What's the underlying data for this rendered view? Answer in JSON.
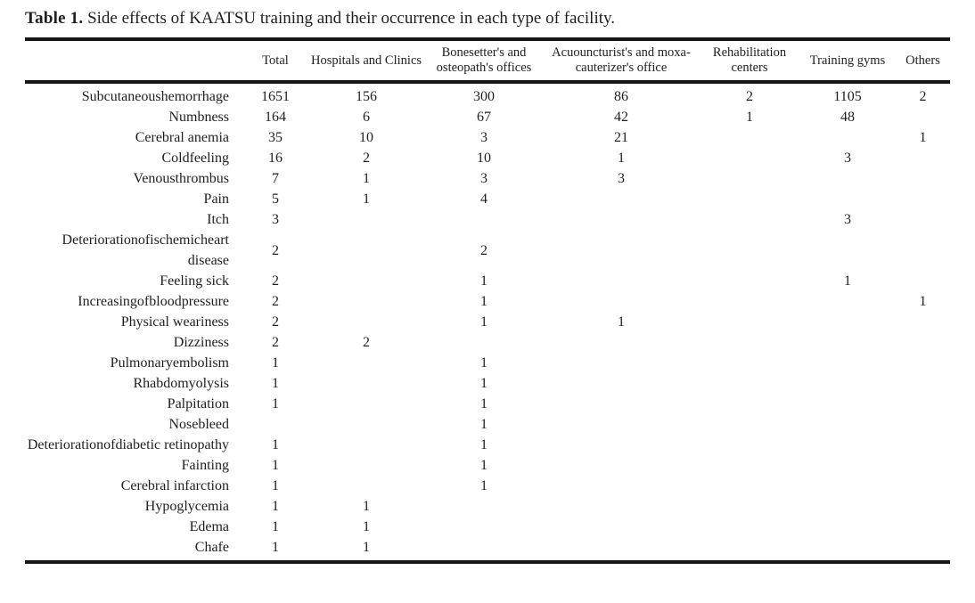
{
  "title": {
    "label": "Table 1.",
    "text": " Side effects of KAATSU training and their occurrence in each type of facility."
  },
  "table": {
    "row_label_header": "",
    "columns": [
      "Total",
      "Hospitals and Clinics",
      "Bonesetter's and osteopath's offices",
      "Acuouncturist's and moxa-cauterizer's office",
      "Rehabilitation centers",
      "Training gyms",
      "Others"
    ],
    "rows": [
      {
        "label": "Subcutaneoushemorrhage",
        "values": [
          "1651",
          "156",
          "300",
          "86",
          "2",
          "1105",
          "2"
        ]
      },
      {
        "label": "Numbness",
        "values": [
          "164",
          "6",
          "67",
          "42",
          "1",
          "48",
          ""
        ]
      },
      {
        "label": "Cerebral anemia",
        "values": [
          "35",
          "10",
          "3",
          "21",
          "",
          "",
          "1"
        ]
      },
      {
        "label": "Coldfeeling",
        "values": [
          "16",
          "2",
          "10",
          "1",
          "",
          "3",
          ""
        ]
      },
      {
        "label": "Venousthrombus",
        "values": [
          "7",
          "1",
          "3",
          "3",
          "",
          "",
          ""
        ]
      },
      {
        "label": "Pain",
        "values": [
          "5",
          "1",
          "4",
          "",
          "",
          "",
          ""
        ]
      },
      {
        "label": "Itch",
        "values": [
          "3",
          "",
          "",
          "",
          "",
          "3",
          ""
        ]
      },
      {
        "label": "Deteriorationofischemicheart disease",
        "values": [
          "2",
          "",
          "2",
          "",
          "",
          "",
          ""
        ]
      },
      {
        "label": "Feeling sick",
        "values": [
          "2",
          "",
          "1",
          "",
          "",
          "1",
          ""
        ]
      },
      {
        "label": "Increasingofbloodpressure",
        "values": [
          "2",
          "",
          "1",
          "",
          "",
          "",
          "1"
        ]
      },
      {
        "label": "Physical weariness",
        "values": [
          "2",
          "",
          "1",
          "1",
          "",
          "",
          ""
        ]
      },
      {
        "label": "Dizziness",
        "values": [
          "2",
          "2",
          "",
          "",
          "",
          "",
          ""
        ]
      },
      {
        "label": "Pulmonaryembolism",
        "values": [
          "1",
          "",
          "1",
          "",
          "",
          "",
          ""
        ]
      },
      {
        "label": "Rhabdomyolysis",
        "values": [
          "1",
          "",
          "1",
          "",
          "",
          "",
          ""
        ]
      },
      {
        "label": "Palpitation",
        "values": [
          "1",
          "",
          "1",
          "",
          "",
          "",
          ""
        ]
      },
      {
        "label": "Nosebleed",
        "values": [
          "",
          "",
          "1",
          "",
          "",
          "",
          ""
        ]
      },
      {
        "label": "Deteriorationofdiabetic retinopathy",
        "values": [
          "1",
          "",
          "1",
          "",
          "",
          "",
          ""
        ]
      },
      {
        "label": "Fainting",
        "values": [
          "1",
          "",
          "1",
          "",
          "",
          "",
          ""
        ]
      },
      {
        "label": "Cerebral infarction",
        "values": [
          "1",
          "",
          "1",
          "",
          "",
          "",
          ""
        ]
      },
      {
        "label": "Hypoglycemia",
        "values": [
          "1",
          "1",
          "",
          "",
          "",
          "",
          ""
        ]
      },
      {
        "label": "Edema",
        "values": [
          "1",
          "1",
          "",
          "",
          "",
          "",
          ""
        ]
      },
      {
        "label": "Chafe",
        "values": [
          "1",
          "1",
          "",
          "",
          "",
          "",
          ""
        ]
      }
    ]
  },
  "colors": {
    "text": "#1f1f1f",
    "rule": "#161616",
    "background": "#ffffff"
  }
}
